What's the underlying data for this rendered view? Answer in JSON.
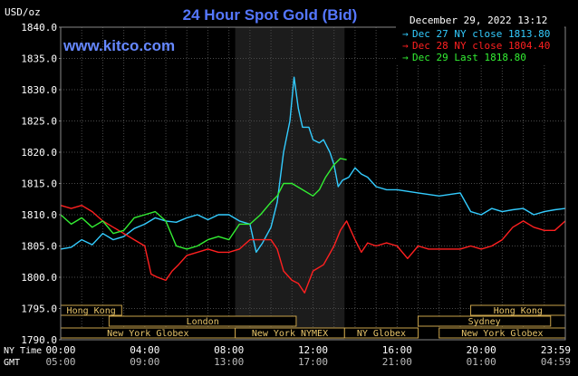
{
  "chart_data": {
    "type": "line",
    "title": "24 Hour Spot Gold (Bid)",
    "unit_label": "USD/oz",
    "watermark": "www.kitco.com",
    "timestamp": "December 29, 2022 13:12",
    "ylim": [
      1790.0,
      1840.0
    ],
    "y_ticks": [
      "1840.0",
      "1835.0",
      "1830.0",
      "1825.0",
      "1820.0",
      "1815.0",
      "1810.0",
      "1805.0",
      "1800.0",
      "1795.0",
      "1790.0"
    ],
    "x_rows": [
      {
        "label": "NY Time",
        "ticks": [
          "00:00",
          "04:00",
          "08:00",
          "12:00",
          "16:00",
          "20:00",
          "23:59"
        ]
      },
      {
        "label": "GMT",
        "ticks": [
          "05:00",
          "09:00",
          "13:00",
          "17:00",
          "21:00",
          "01:00",
          "04:59"
        ]
      }
    ],
    "xlim_hours": [
      0,
      24
    ],
    "grid": true,
    "legend_position": "top-right",
    "shaded_session_hours": [
      8.3,
      13.5
    ],
    "series": [
      {
        "name": "Dec 27 NY close 1813.80",
        "color": "#33ccff",
        "points": [
          [
            0,
            1804.5
          ],
          [
            0.5,
            1804.8
          ],
          [
            1,
            1806
          ],
          [
            1.5,
            1805.2
          ],
          [
            2,
            1807
          ],
          [
            2.5,
            1806
          ],
          [
            3,
            1806.5
          ],
          [
            3.5,
            1807.8
          ],
          [
            4,
            1808.5
          ],
          [
            4.5,
            1809.5
          ],
          [
            5,
            1809
          ],
          [
            5.5,
            1808.8
          ],
          [
            6,
            1809.5
          ],
          [
            6.5,
            1810
          ],
          [
            7,
            1809.2
          ],
          [
            7.5,
            1810
          ],
          [
            8,
            1810
          ],
          [
            8.5,
            1809
          ],
          [
            9,
            1808.5
          ],
          [
            9.3,
            1804
          ],
          [
            9.6,
            1805.5
          ],
          [
            10,
            1808
          ],
          [
            10.3,
            1812
          ],
          [
            10.6,
            1820
          ],
          [
            10.9,
            1825
          ],
          [
            11.1,
            1832
          ],
          [
            11.3,
            1827
          ],
          [
            11.5,
            1824
          ],
          [
            11.8,
            1824
          ],
          [
            12,
            1822
          ],
          [
            12.3,
            1821.5
          ],
          [
            12.5,
            1822
          ],
          [
            12.8,
            1820
          ],
          [
            13,
            1818
          ],
          [
            13.2,
            1814.5
          ],
          [
            13.4,
            1815.5
          ],
          [
            13.7,
            1816
          ],
          [
            14,
            1817.5
          ],
          [
            14.3,
            1816.5
          ],
          [
            14.6,
            1816
          ],
          [
            15,
            1814.5
          ],
          [
            15.5,
            1814
          ],
          [
            16,
            1814
          ],
          [
            17,
            1813.5
          ],
          [
            18,
            1813
          ],
          [
            19,
            1813.5
          ],
          [
            19.5,
            1810.5
          ],
          [
            20,
            1810
          ],
          [
            20.5,
            1811
          ],
          [
            21,
            1810.5
          ],
          [
            21.5,
            1810.8
          ],
          [
            22,
            1811
          ],
          [
            22.5,
            1810
          ],
          [
            23,
            1810.5
          ],
          [
            23.5,
            1810.8
          ],
          [
            24,
            1811
          ]
        ]
      },
      {
        "name": "Dec 28 NY close 1804.40",
        "color": "#ff2020",
        "points": [
          [
            0,
            1811.5
          ],
          [
            0.5,
            1811
          ],
          [
            1,
            1811.5
          ],
          [
            1.5,
            1810.5
          ],
          [
            2,
            1809
          ],
          [
            2.5,
            1808
          ],
          [
            3,
            1807
          ],
          [
            3.5,
            1806
          ],
          [
            4,
            1805
          ],
          [
            4.3,
            1800.5
          ],
          [
            4.6,
            1800
          ],
          [
            5,
            1799.5
          ],
          [
            5.3,
            1801
          ],
          [
            5.6,
            1802
          ],
          [
            6,
            1803.5
          ],
          [
            6.5,
            1804
          ],
          [
            7,
            1804.5
          ],
          [
            7.5,
            1804
          ],
          [
            8,
            1804
          ],
          [
            8.5,
            1804.5
          ],
          [
            9,
            1806
          ],
          [
            9.5,
            1806
          ],
          [
            10,
            1806
          ],
          [
            10.3,
            1804.5
          ],
          [
            10.6,
            1801
          ],
          [
            11,
            1799.5
          ],
          [
            11.3,
            1799
          ],
          [
            11.6,
            1797.5
          ],
          [
            12,
            1801
          ],
          [
            12.5,
            1802
          ],
          [
            13,
            1805
          ],
          [
            13.3,
            1807.5
          ],
          [
            13.6,
            1809
          ],
          [
            14,
            1806
          ],
          [
            14.3,
            1804
          ],
          [
            14.6,
            1805.5
          ],
          [
            15,
            1805
          ],
          [
            15.5,
            1805.5
          ],
          [
            16,
            1805
          ],
          [
            16.5,
            1803
          ],
          [
            17,
            1805
          ],
          [
            17.5,
            1804.5
          ],
          [
            18,
            1804.5
          ],
          [
            19,
            1804.5
          ],
          [
            19.5,
            1805
          ],
          [
            20,
            1804.5
          ],
          [
            20.5,
            1805
          ],
          [
            21,
            1806
          ],
          [
            21.5,
            1808
          ],
          [
            22,
            1809
          ],
          [
            22.5,
            1808
          ],
          [
            23,
            1807.5
          ],
          [
            23.5,
            1807.5
          ],
          [
            24,
            1809
          ]
        ]
      },
      {
        "name": "Dec 29 Last 1818.80",
        "color": "#33ee33",
        "points": [
          [
            0,
            1810
          ],
          [
            0.5,
            1808.5
          ],
          [
            1,
            1809.5
          ],
          [
            1.5,
            1808
          ],
          [
            2,
            1809
          ],
          [
            2.5,
            1807
          ],
          [
            3,
            1807.5
          ],
          [
            3.5,
            1809.5
          ],
          [
            4,
            1810
          ],
          [
            4.5,
            1810.5
          ],
          [
            5,
            1809
          ],
          [
            5.5,
            1805
          ],
          [
            6,
            1804.5
          ],
          [
            6.5,
            1805
          ],
          [
            7,
            1806
          ],
          [
            7.5,
            1806.5
          ],
          [
            8,
            1806
          ],
          [
            8.5,
            1808.5
          ],
          [
            9,
            1808.5
          ],
          [
            9.5,
            1810
          ],
          [
            10,
            1812
          ],
          [
            10.3,
            1813
          ],
          [
            10.6,
            1815
          ],
          [
            11,
            1815
          ],
          [
            11.5,
            1814
          ],
          [
            12,
            1813
          ],
          [
            12.3,
            1814
          ],
          [
            12.6,
            1816
          ],
          [
            13,
            1818
          ],
          [
            13.3,
            1819
          ],
          [
            13.6,
            1818.8
          ]
        ]
      }
    ],
    "sessions": [
      {
        "name": "Hong Kong",
        "start_h": 0,
        "end_h": 2.9,
        "row": 0
      },
      {
        "name": "London",
        "start_h": 2.3,
        "end_h": 11.2,
        "row": 1
      },
      {
        "name": "New York Globex",
        "start_h": 0,
        "end_h": 8.3,
        "row": 2
      },
      {
        "name": "New York NYMEX",
        "start_h": 8.3,
        "end_h": 13.5,
        "row": 2
      },
      {
        "name": "NY Globex",
        "start_h": 13.5,
        "end_h": 17,
        "row": 2
      },
      {
        "name": "Hong Kong",
        "start_h": 19.5,
        "end_h": 24,
        "row": 0
      },
      {
        "name": "Sydney",
        "start_h": 17,
        "end_h": 23.3,
        "row": 1
      },
      {
        "name": "New York Globex",
        "start_h": 18,
        "end_h": 24,
        "row": 2
      }
    ]
  }
}
